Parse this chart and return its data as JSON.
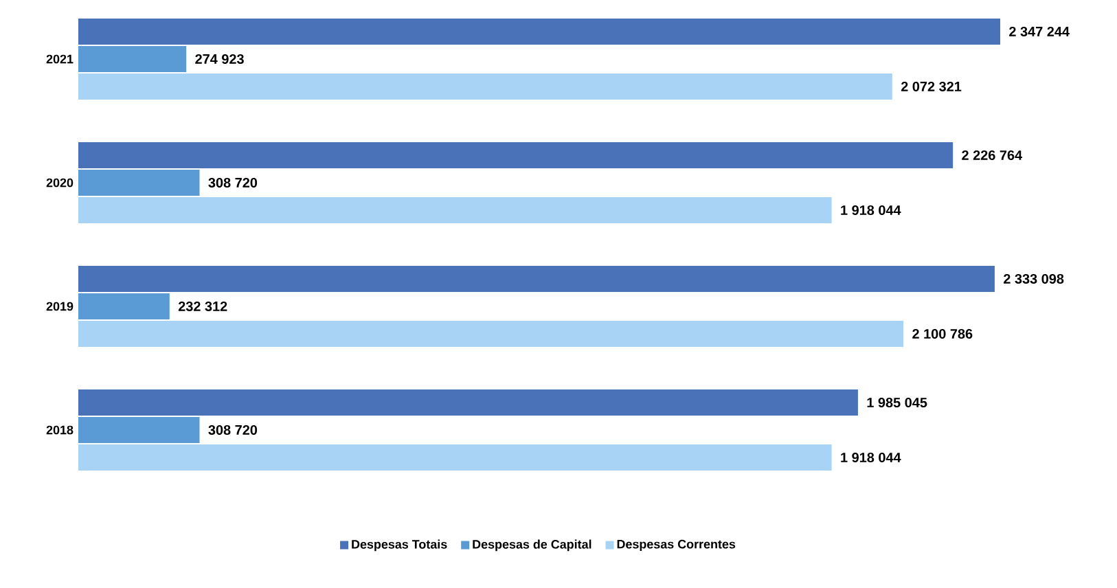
{
  "chart_data": {
    "type": "bar",
    "orientation": "horizontal",
    "categories": [
      "2021",
      "2020",
      "2019",
      "2018"
    ],
    "series": [
      {
        "name": "Despesas Totais",
        "color": "#4a72b8",
        "values": [
          2347244,
          2226764,
          2333098,
          1985045
        ],
        "value_labels": [
          "2 347 244",
          "2 226 764",
          "2 333 098",
          "1 985 045"
        ]
      },
      {
        "name": "Despesas de Capital",
        "color": "#5b9bd5",
        "values": [
          274923,
          308720,
          232312,
          308720
        ],
        "value_labels": [
          "274 923",
          "308 720",
          "232 312",
          "308 720"
        ]
      },
      {
        "name": "Despesas Correntes",
        "color": "#a9d3f5",
        "values": [
          2072321,
          1918044,
          2100786,
          1918044
        ],
        "value_labels": [
          "2 072 321",
          "1 918 044",
          "2 100 786",
          "1 918 044"
        ]
      }
    ],
    "legend": "bottom"
  }
}
